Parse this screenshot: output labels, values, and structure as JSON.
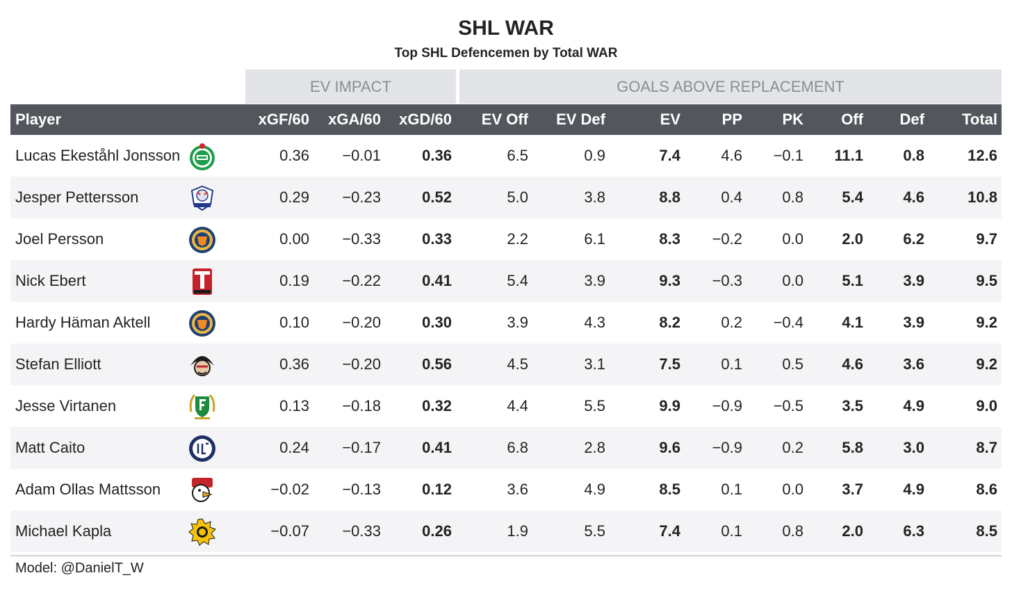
{
  "title": "SHL WAR",
  "subtitle": "Top SHL Defencemen by Total WAR",
  "spanners": {
    "ev_impact": "EV IMPACT",
    "gar": "GOALS ABOVE REPLACEMENT"
  },
  "columns": [
    "Player",
    "xGF/60",
    "xGA/60",
    "xGD/60",
    "EV Off",
    "EV Def",
    "EV",
    "PP",
    "PK",
    "Off",
    "Def",
    "Total"
  ],
  "chart_data": {
    "type": "table",
    "title": "SHL WAR",
    "subtitle": "Top SHL Defencemen by Total WAR",
    "rows": [
      {
        "player": "Lucas Ekeståhl Jonsson",
        "logo": "rogle-logo",
        "values": [
          "0.36",
          "−0.01",
          "0.36",
          "6.5",
          "0.9",
          "7.4",
          "4.6",
          "−0.1",
          "11.1",
          "0.8",
          "12.6"
        ]
      },
      {
        "player": "Jesper Pettersson",
        "logo": "linkoping-logo",
        "values": [
          "0.29",
          "−0.23",
          "0.52",
          "5.0",
          "3.8",
          "8.8",
          "0.4",
          "0.8",
          "5.4",
          "4.6",
          "10.8"
        ]
      },
      {
        "player": "Joel Persson",
        "logo": "vaxjo-logo",
        "values": [
          "0.00",
          "−0.33",
          "0.33",
          "2.2",
          "6.1",
          "8.3",
          "−0.2",
          "0.0",
          "2.0",
          "6.2",
          "9.7"
        ]
      },
      {
        "player": "Nick Ebert",
        "logo": "orebro-logo",
        "values": [
          "0.19",
          "−0.22",
          "0.41",
          "5.4",
          "3.9",
          "9.3",
          "−0.3",
          "0.0",
          "5.1",
          "3.9",
          "9.5"
        ]
      },
      {
        "player": "Hardy Häman Aktell",
        "logo": "vaxjo-logo",
        "values": [
          "0.10",
          "−0.20",
          "0.30",
          "3.9",
          "4.3",
          "8.2",
          "0.2",
          "−0.4",
          "4.1",
          "3.9",
          "9.2"
        ]
      },
      {
        "player": "Stefan Elliott",
        "logo": "frolunda-logo",
        "values": [
          "0.36",
          "−0.20",
          "0.56",
          "4.5",
          "3.1",
          "7.5",
          "0.1",
          "0.5",
          "4.6",
          "3.6",
          "9.2"
        ]
      },
      {
        "player": "Jesse Virtanen",
        "logo": "farjestad-logo",
        "values": [
          "0.13",
          "−0.18",
          "0.32",
          "4.4",
          "5.5",
          "9.9",
          "−0.9",
          "−0.5",
          "3.5",
          "4.9",
          "9.0"
        ]
      },
      {
        "player": "Matt Caito",
        "logo": "leksand-logo",
        "values": [
          "0.24",
          "−0.17",
          "0.41",
          "6.8",
          "2.8",
          "9.6",
          "−0.9",
          "0.2",
          "5.8",
          "3.0",
          "8.7"
        ]
      },
      {
        "player": "Adam Ollas Mattsson",
        "logo": "malmo-logo",
        "values": [
          "−0.02",
          "−0.13",
          "0.12",
          "3.6",
          "4.9",
          "8.5",
          "0.1",
          "0.0",
          "3.7",
          "4.9",
          "8.6"
        ]
      },
      {
        "player": "Michael Kapla",
        "logo": "skelleftea-logo",
        "values": [
          "−0.07",
          "−0.33",
          "0.26",
          "1.9",
          "5.5",
          "7.4",
          "0.1",
          "0.8",
          "2.0",
          "6.3",
          "8.5"
        ]
      }
    ]
  },
  "caption": "Model: @DanielT_W",
  "colors": {
    "header_bg": "#53565c",
    "spanner_bg": "#e3e4e7",
    "spanner_text": "#8a8d93",
    "stripe": "#f4f4f7"
  }
}
